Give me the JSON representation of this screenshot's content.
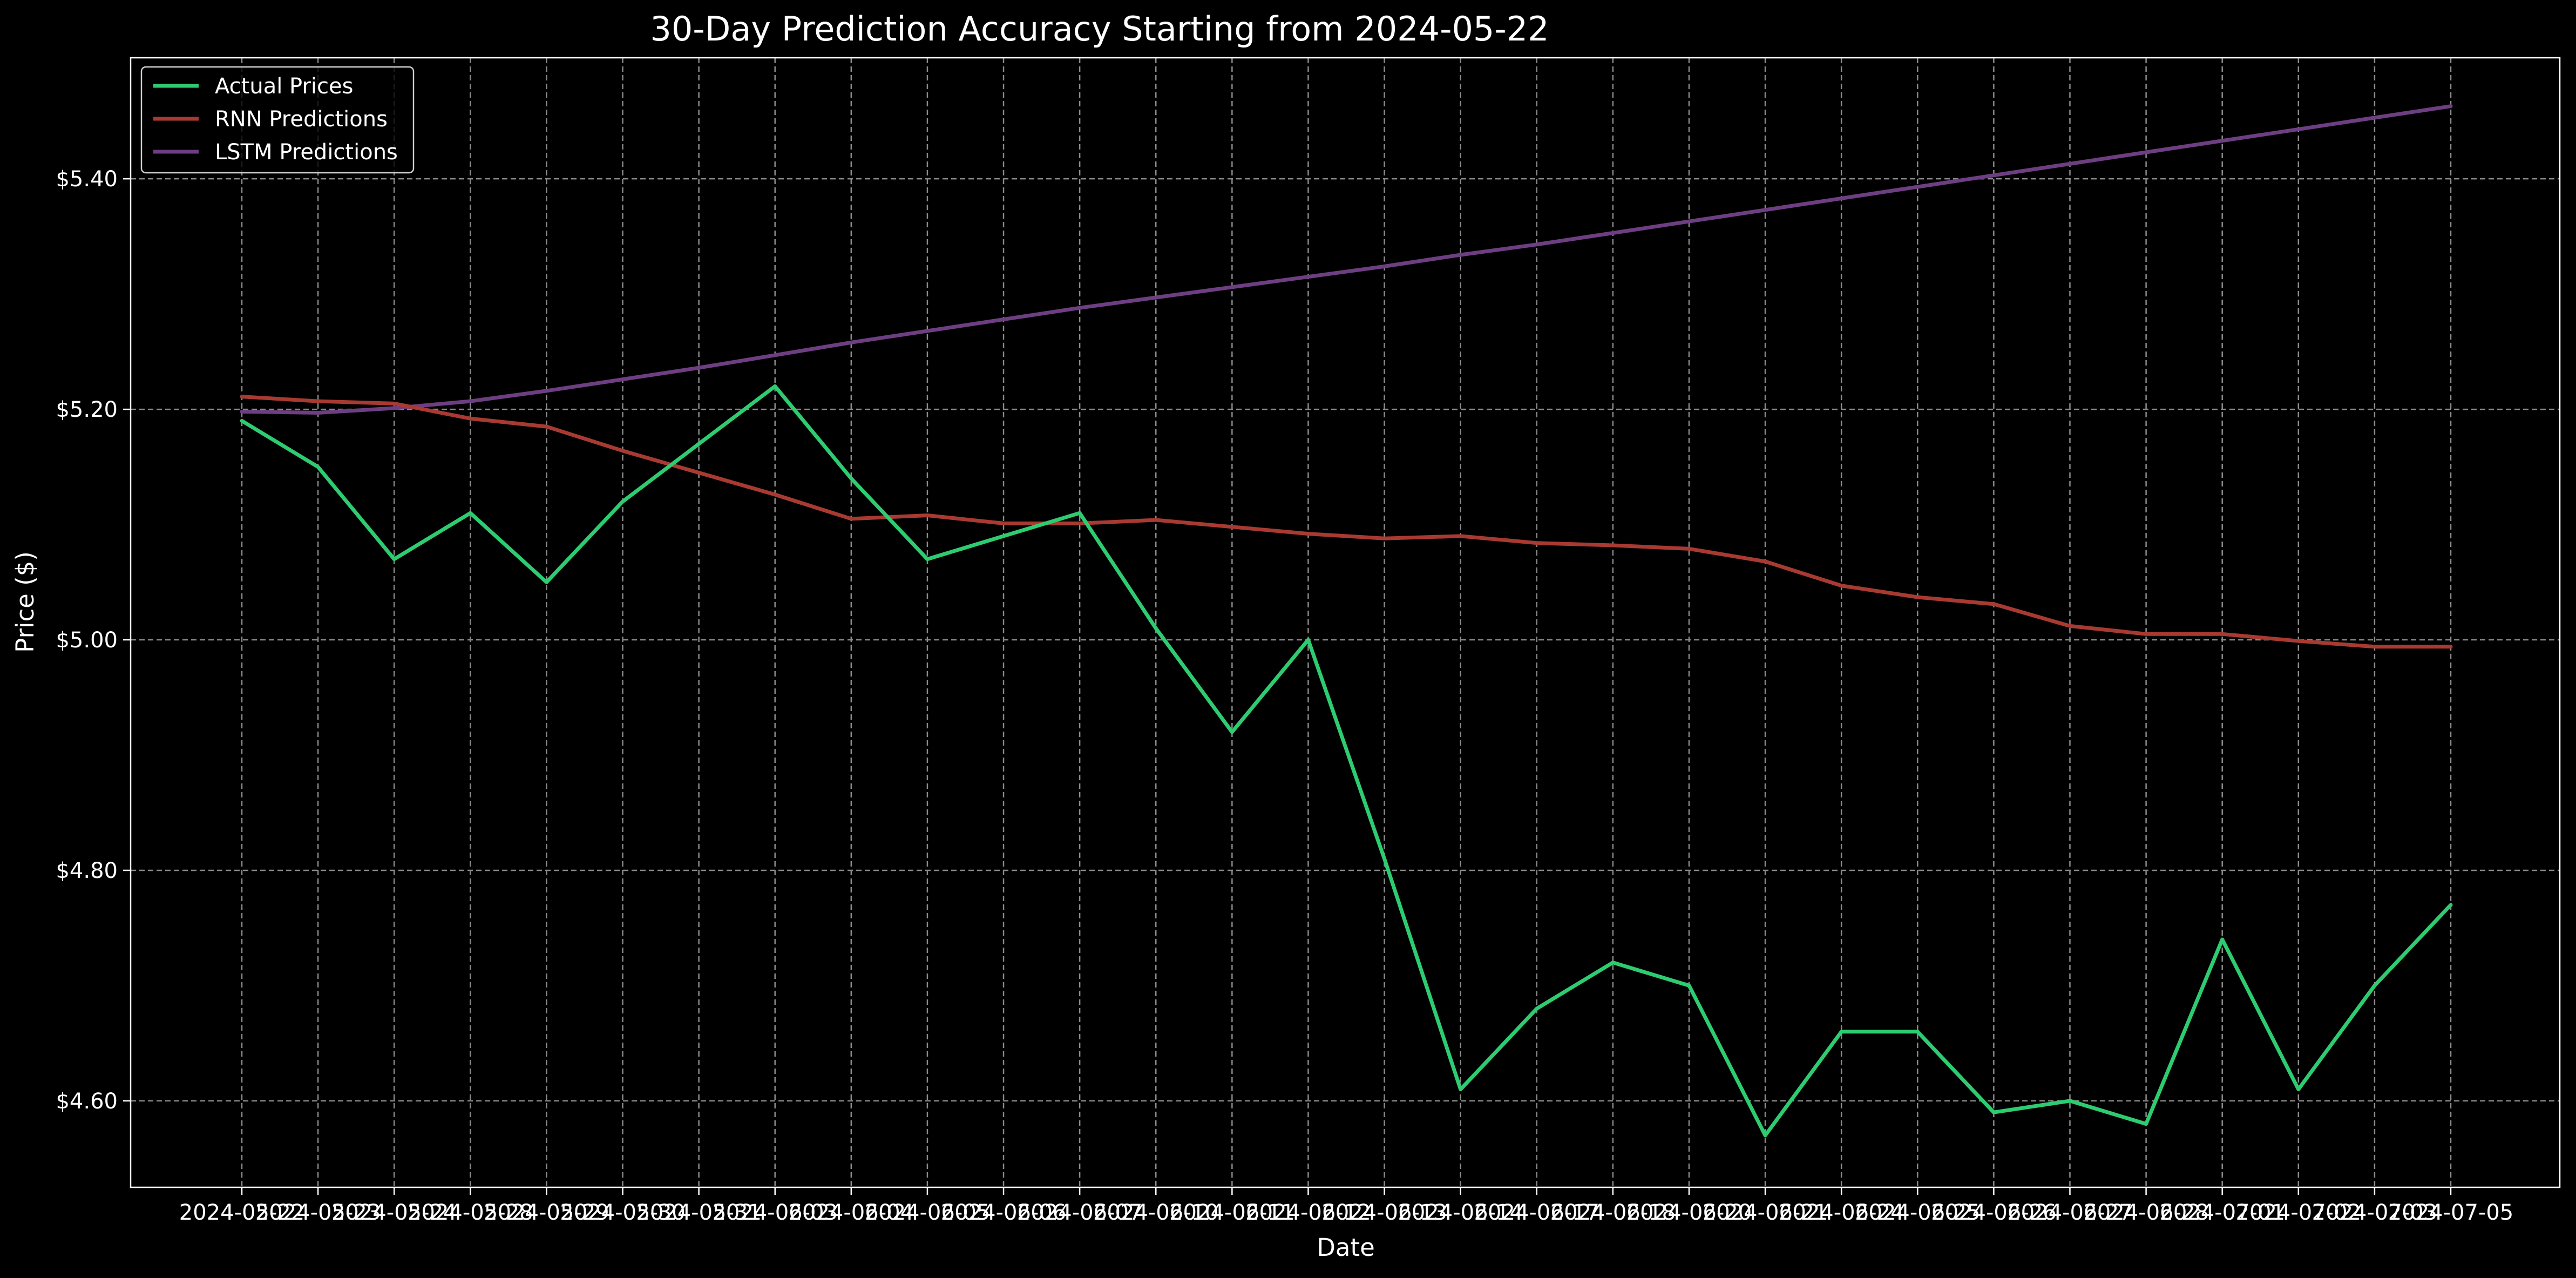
{
  "chart_data": {
    "type": "line",
    "title": "30-Day Prediction Accuracy Starting from 2024-05-22",
    "xlabel": "Date",
    "ylabel": "Price ($)",
    "x": [
      "2024-05-22",
      "2024-05-23",
      "2024-05-24",
      "2024-05-28",
      "2024-05-29",
      "2024-05-30",
      "2024-05-31",
      "2024-06-03",
      "2024-06-04",
      "2024-06-05",
      "2024-06-06",
      "2024-06-07",
      "2024-06-10",
      "2024-06-11",
      "2024-06-12",
      "2024-06-13",
      "2024-06-14",
      "2024-06-17",
      "2024-06-18",
      "2024-06-20",
      "2024-06-21",
      "2024-06-24",
      "2024-06-25",
      "2024-06-26",
      "2024-06-27",
      "2024-06-28",
      "2024-07-01",
      "2024-07-02",
      "2024-07-03",
      "2024-07-05"
    ],
    "yticks": [
      "$4.60",
      "$4.80",
      "$5.00",
      "$5.20",
      "$5.40"
    ],
    "ytick_values": [
      4.6,
      4.8,
      5.0,
      5.2,
      5.4
    ],
    "ylim": [
      4.525,
      5.505
    ],
    "grid": true,
    "legend_position": "top-left",
    "series": [
      {
        "name": "Actual Prices",
        "color": "#2ecc71",
        "values": [
          5.19,
          5.15,
          5.07,
          5.11,
          5.05,
          5.12,
          5.17,
          5.22,
          5.14,
          5.07,
          5.09,
          5.11,
          5.01,
          4.92,
          5.0,
          4.81,
          4.61,
          4.68,
          4.72,
          4.7,
          4.57,
          4.66,
          4.66,
          4.59,
          4.6,
          4.58,
          4.74,
          4.61,
          4.7,
          4.77
        ]
      },
      {
        "name": "RNN Predictions",
        "color": "#a83a32",
        "values": [
          5.211,
          5.207,
          5.205,
          5.192,
          5.185,
          5.164,
          5.145,
          5.126,
          5.105,
          5.108,
          5.101,
          5.101,
          5.104,
          5.098,
          5.092,
          5.088,
          5.09,
          5.084,
          5.082,
          5.079,
          5.068,
          5.047,
          5.037,
          5.031,
          5.012,
          5.005,
          5.005,
          4.999,
          4.994,
          4.994
        ]
      },
      {
        "name": "LSTM Predictions",
        "color": "#6e3e82",
        "values": [
          5.198,
          5.197,
          5.201,
          5.207,
          5.216,
          5.226,
          5.236,
          5.247,
          5.258,
          5.268,
          5.278,
          5.288,
          5.297,
          5.306,
          5.315,
          5.324,
          5.334,
          5.343,
          5.353,
          5.363,
          5.373,
          5.383,
          5.393,
          5.403,
          5.413,
          5.423,
          5.433,
          5.443,
          5.453,
          5.463
        ]
      }
    ]
  }
}
